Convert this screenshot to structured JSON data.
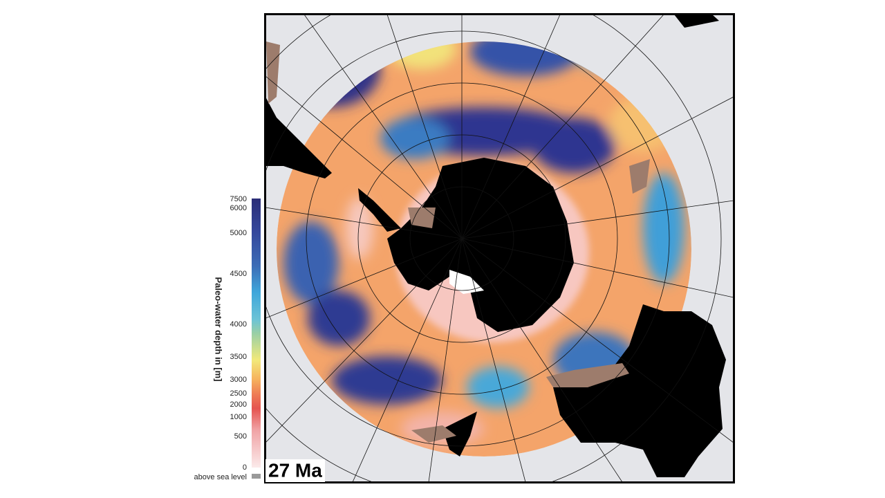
{
  "colorbar": {
    "title": "Paleo-water depth in [m]",
    "ticks": [
      "7500",
      "6000",
      "5000",
      "4500",
      "4000",
      "3500",
      "3000",
      "2500",
      "2000",
      "1000",
      "500",
      "0"
    ],
    "above_sea_level": "above sea level"
  },
  "map": {
    "age_label": "27 Ma"
  }
}
